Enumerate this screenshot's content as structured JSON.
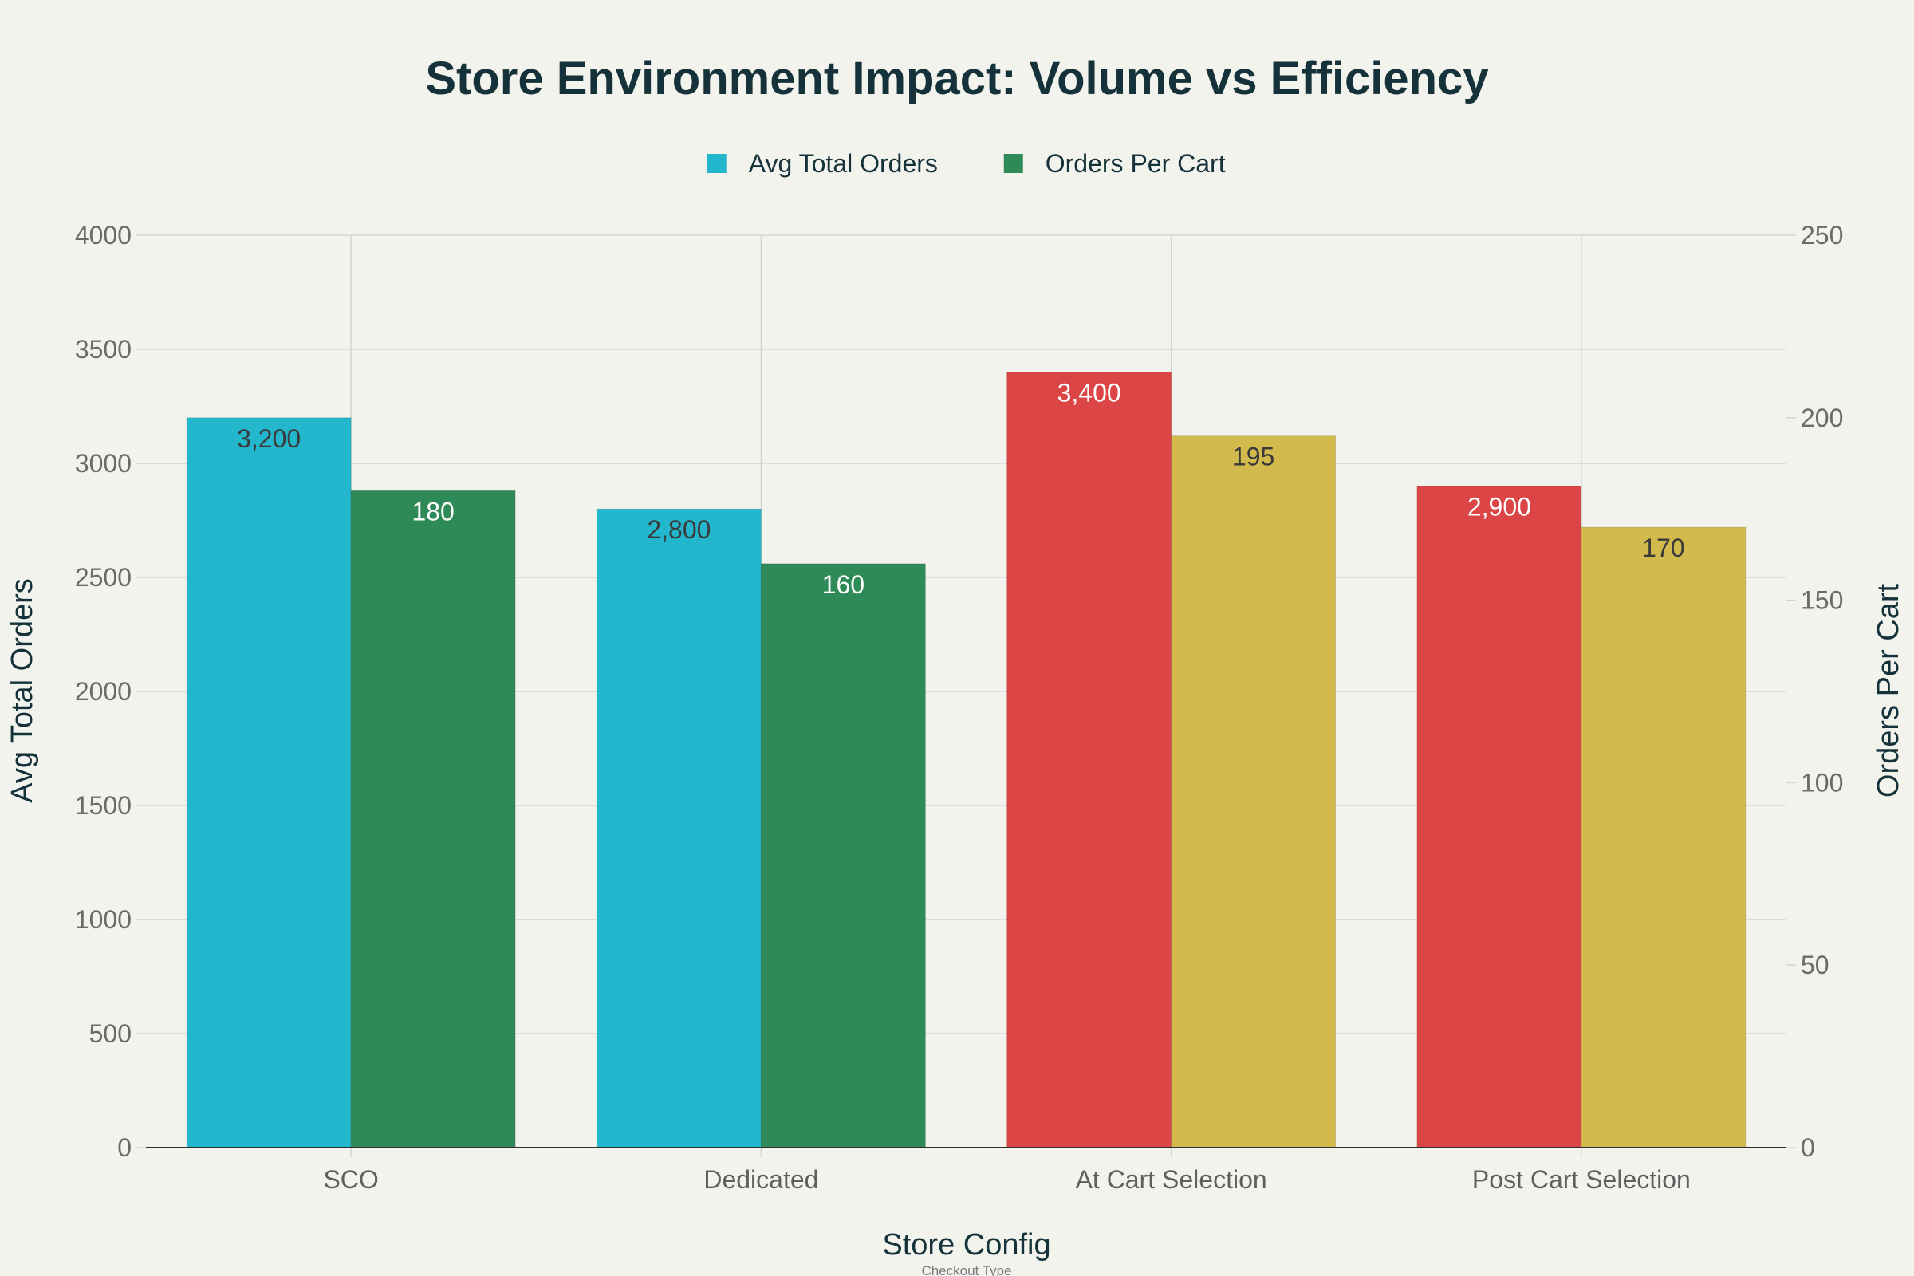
{
  "colors": {
    "background": "#f3f3ee",
    "text": "#15323a",
    "tick": "#6b6b6b",
    "grid": "#d5d5d0",
    "axis": "#2f2f2f",
    "volume_standard": "#22b7cc",
    "efficiency_standard": "#2e8b57",
    "volume_cart": "#db4545",
    "efficiency_cart": "#d2ba4c",
    "label_dark": "#3a3a3a",
    "label_light": "#ffffff"
  },
  "chart_data": {
    "type": "bar",
    "title": "Store Environment Impact: Volume vs Efficiency",
    "xlabel": "Store Config",
    "xlabel_sub": "Checkout Type",
    "ylabel_left": "Avg Total Orders",
    "ylabel_right": "Orders Per Cart",
    "categories": [
      "SCO",
      "Dedicated",
      "At Cart Selection",
      "Post Cart Selection"
    ],
    "ylim_left": [
      0,
      4000
    ],
    "ylim_right": [
      0,
      250
    ],
    "left_ticks": [
      "0",
      "500",
      "1000",
      "1500",
      "2000",
      "2500",
      "3000",
      "3500",
      "4000"
    ],
    "right_ticks": [
      "0",
      "50",
      "100",
      "150",
      "200",
      "250"
    ],
    "grid": true,
    "legend_position": "top-center",
    "legend": [
      {
        "name": "Avg Total Orders",
        "color": "#22b7cc"
      },
      {
        "name": "Orders Per Cart",
        "color": "#2e8b57"
      }
    ],
    "series": [
      {
        "name": "Avg Total Orders",
        "axis": "left",
        "values": [
          3200,
          2800,
          3400,
          2900
        ],
        "labels": [
          "3,200",
          "2,800",
          "3,400",
          "2,900"
        ],
        "colors": [
          "#22b7cc",
          "#22b7cc",
          "#db4545",
          "#db4545"
        ],
        "label_colors": [
          "#3a3a3a",
          "#3a3a3a",
          "#ffffff",
          "#ffffff"
        ]
      },
      {
        "name": "Orders Per Cart",
        "axis": "right",
        "values": [
          180,
          160,
          195,
          170
        ],
        "labels": [
          "180",
          "160",
          "195",
          "170"
        ],
        "colors": [
          "#2e8b57",
          "#2e8b57",
          "#d2ba4c",
          "#d2ba4c"
        ],
        "label_colors": [
          "#ffffff",
          "#ffffff",
          "#3a3a3a",
          "#3a3a3a"
        ]
      }
    ]
  }
}
